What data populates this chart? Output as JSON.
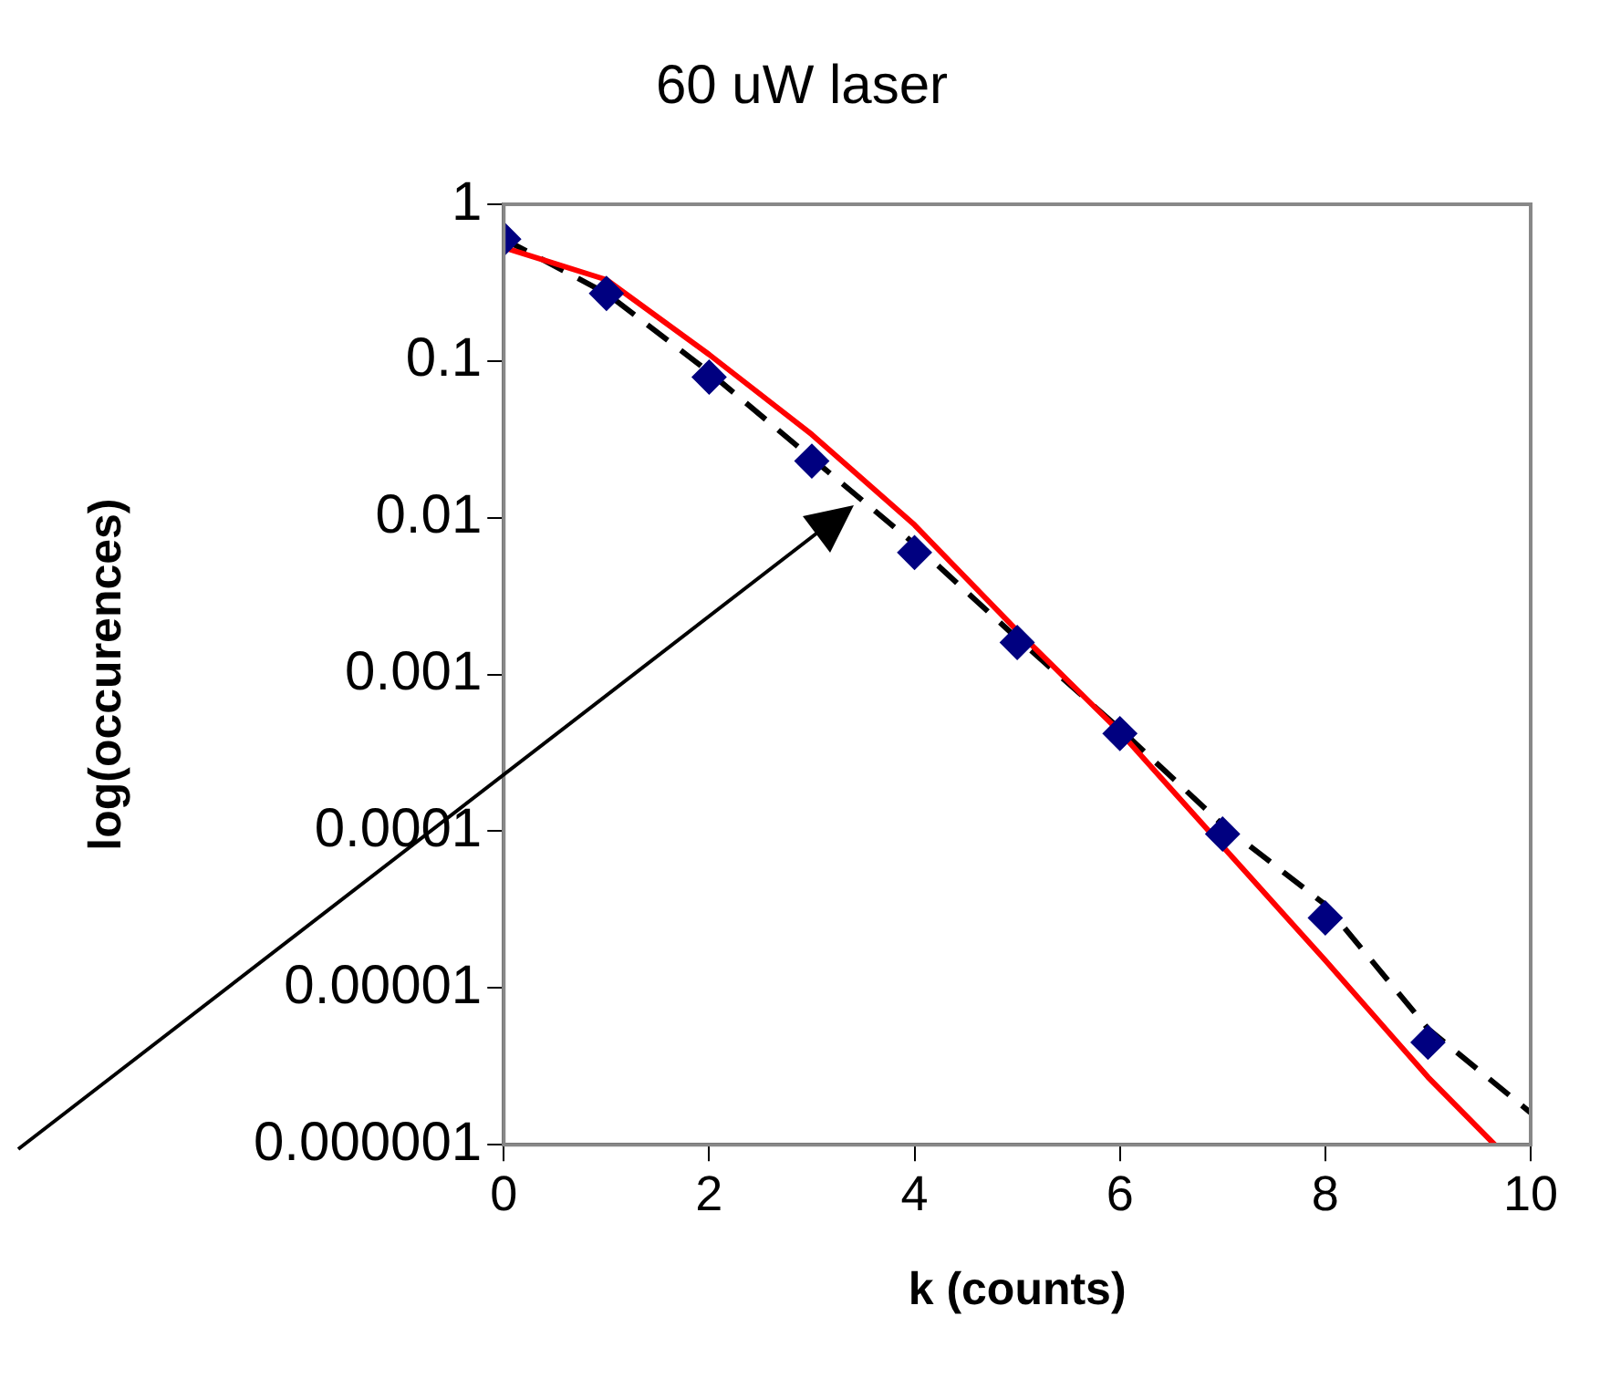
{
  "chart_data": {
    "type": "scatter",
    "title": "60 uW laser",
    "xlabel": "k (counts)",
    "ylabel": "log(occurences)",
    "log": "y",
    "xlim": [
      0,
      10
    ],
    "xticks": [
      0,
      2,
      4,
      6,
      8,
      10
    ],
    "ylim": [
      1e-06,
      1
    ],
    "yticks": [
      1,
      0.1,
      0.01,
      0.001,
      0.0001,
      {
        "value": 1e-05,
        "label": "0.00001"
      },
      {
        "value": 1e-06,
        "label": "0.000001"
      }
    ],
    "series": [
      {
        "type": "line",
        "color": "#ff0000",
        "marker": "none",
        "line_style": "solid",
        "x": [
          0,
          1,
          2,
          3,
          4,
          5,
          6,
          7,
          8,
          9,
          9.65
        ],
        "values": [
          0.53,
          0.33,
          0.11,
          0.034,
          0.009,
          0.0019,
          0.00043,
          8e-05,
          1.5e-05,
          2.7e-06,
          1e-06
        ]
      },
      {
        "type": "line",
        "color": "#000000",
        "marker": "none",
        "line_style": "dashed",
        "x": [
          0,
          1,
          2,
          3,
          4,
          5,
          6,
          7,
          8,
          9,
          10
        ],
        "values": [
          0.6,
          0.27,
          0.085,
          0.024,
          0.0068,
          0.0017,
          0.00045,
          0.00011,
          3.4e-05,
          5.5e-06,
          1.6e-06
        ]
      },
      {
        "type": "scatter",
        "color": "#000080",
        "marker": "diamond",
        "x": [
          0,
          1,
          2,
          3,
          4,
          5,
          6,
          7,
          8,
          9
        ],
        "values": [
          0.6,
          0.27,
          0.079,
          0.023,
          0.006,
          0.0016,
          0.00042,
          9.6e-05,
          2.8e-05,
          4.5e-06
        ]
      }
    ]
  }
}
